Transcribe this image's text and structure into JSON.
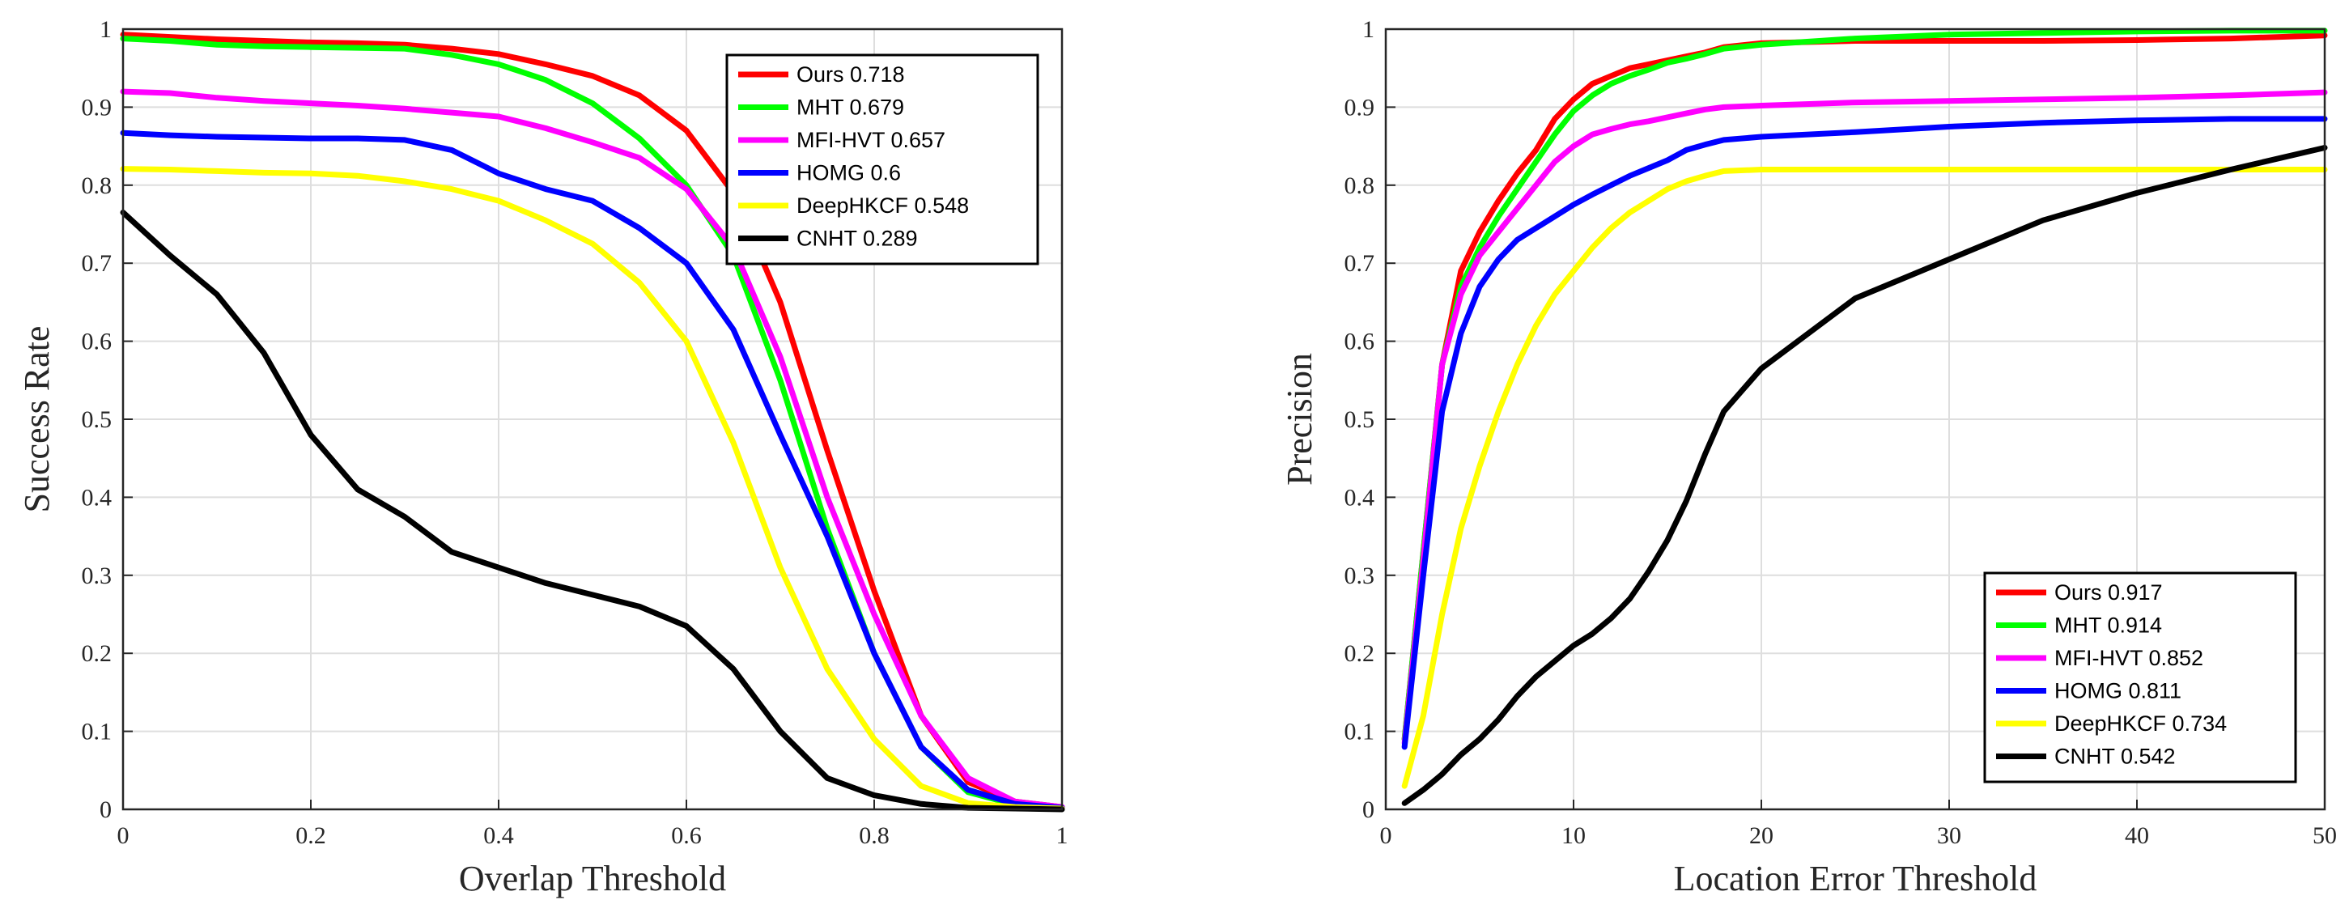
{
  "chart_data": [
    {
      "type": "line",
      "title": "",
      "xlabel": "Overlap Threshold",
      "ylabel": "Success Rate",
      "xlim": [
        0,
        1
      ],
      "ylim": [
        0,
        1
      ],
      "xticks": [
        "0",
        "0.2",
        "0.4",
        "0.6",
        "0.8",
        "1"
      ],
      "yticks": [
        "0",
        "0.1",
        "0.2",
        "0.3",
        "0.4",
        "0.5",
        "0.6",
        "0.7",
        "0.8",
        "0.9",
        "1"
      ],
      "grid": true,
      "legend_position": "top-right",
      "x": [
        0,
        0.05,
        0.1,
        0.15,
        0.2,
        0.25,
        0.3,
        0.35,
        0.4,
        0.45,
        0.5,
        0.55,
        0.6,
        0.65,
        0.7,
        0.75,
        0.8,
        0.85,
        0.9,
        0.95,
        1
      ],
      "series": [
        {
          "name": "Ours",
          "score": "0.718",
          "color": "#ff0000",
          "values": [
            0.993,
            0.99,
            0.987,
            0.985,
            0.983,
            0.982,
            0.98,
            0.975,
            0.968,
            0.955,
            0.94,
            0.915,
            0.87,
            0.79,
            0.65,
            0.46,
            0.28,
            0.12,
            0.035,
            0.01,
            0.003
          ]
        },
        {
          "name": "MHT",
          "score": "0.679",
          "color": "#00ff00",
          "values": [
            0.988,
            0.985,
            0.98,
            0.978,
            0.977,
            0.976,
            0.975,
            0.967,
            0.955,
            0.935,
            0.905,
            0.86,
            0.8,
            0.71,
            0.55,
            0.36,
            0.2,
            0.08,
            0.022,
            0.006,
            0.002
          ]
        },
        {
          "name": "MFI-HVT",
          "score": "0.657",
          "color": "#ff00ff",
          "values": [
            0.92,
            0.918,
            0.912,
            0.908,
            0.905,
            0.902,
            0.898,
            0.893,
            0.888,
            0.873,
            0.855,
            0.835,
            0.795,
            0.72,
            0.58,
            0.4,
            0.25,
            0.12,
            0.04,
            0.01,
            0.003
          ]
        },
        {
          "name": "HOMG",
          "score": "0.6",
          "color": "#0000ff",
          "values": [
            0.867,
            0.864,
            0.862,
            0.861,
            0.86,
            0.86,
            0.858,
            0.845,
            0.815,
            0.795,
            0.78,
            0.745,
            0.7,
            0.615,
            0.48,
            0.35,
            0.2,
            0.08,
            0.025,
            0.007,
            0.002
          ]
        },
        {
          "name": "DeepHKCF",
          "score": "0.548",
          "color": "#ffff00",
          "values": [
            0.821,
            0.82,
            0.818,
            0.816,
            0.815,
            0.812,
            0.805,
            0.795,
            0.78,
            0.755,
            0.725,
            0.675,
            0.6,
            0.47,
            0.31,
            0.18,
            0.09,
            0.03,
            0.008,
            0.003,
            0.001
          ]
        },
        {
          "name": "CNHT",
          "score": "0.289",
          "color": "#000000",
          "values": [
            0.765,
            0.71,
            0.66,
            0.585,
            0.48,
            0.41,
            0.375,
            0.33,
            0.31,
            0.29,
            0.275,
            0.26,
            0.235,
            0.18,
            0.1,
            0.04,
            0.018,
            0.007,
            0.002,
            0.001,
            0
          ]
        }
      ]
    },
    {
      "type": "line",
      "title": "",
      "xlabel": "Location Error Threshold",
      "ylabel": "Precision",
      "xlim": [
        0,
        50
      ],
      "ylim": [
        0,
        1
      ],
      "xticks": [
        "0",
        "10",
        "20",
        "30",
        "40",
        "50"
      ],
      "yticks": [
        "0",
        "0.1",
        "0.2",
        "0.3",
        "0.4",
        "0.5",
        "0.6",
        "0.7",
        "0.8",
        "0.9",
        "1"
      ],
      "grid": true,
      "legend_position": "bottom-right",
      "x": [
        1,
        2,
        3,
        4,
        5,
        6,
        7,
        8,
        9,
        10,
        11,
        12,
        13,
        14,
        15,
        16,
        17,
        18,
        20,
        25,
        30,
        35,
        40,
        45,
        50
      ],
      "series": [
        {
          "name": "Ours",
          "score": "0.917",
          "color": "#ff0000",
          "values": [
            0.09,
            0.33,
            0.57,
            0.69,
            0.74,
            0.78,
            0.815,
            0.845,
            0.885,
            0.91,
            0.93,
            0.94,
            0.95,
            0.955,
            0.96,
            0.965,
            0.97,
            0.977,
            0.982,
            0.985,
            0.985,
            0.985,
            0.986,
            0.988,
            0.992
          ]
        },
        {
          "name": "MHT",
          "score": "0.914",
          "color": "#00ff00",
          "values": [
            0.09,
            0.33,
            0.57,
            0.67,
            0.72,
            0.76,
            0.795,
            0.83,
            0.865,
            0.895,
            0.915,
            0.93,
            0.94,
            0.948,
            0.957,
            0.962,
            0.968,
            0.975,
            0.98,
            0.988,
            0.993,
            0.995,
            0.997,
            0.998,
            0.998
          ]
        },
        {
          "name": "MFI-HVT",
          "score": "0.852",
          "color": "#ff00ff",
          "values": [
            0.085,
            0.32,
            0.57,
            0.66,
            0.71,
            0.74,
            0.77,
            0.8,
            0.83,
            0.85,
            0.865,
            0.872,
            0.878,
            0.882,
            0.887,
            0.892,
            0.897,
            0.9,
            0.902,
            0.906,
            0.908,
            0.91,
            0.912,
            0.915,
            0.919
          ]
        },
        {
          "name": "HOMG",
          "score": "0.811",
          "color": "#0000ff",
          "values": [
            0.08,
            0.3,
            0.51,
            0.61,
            0.67,
            0.705,
            0.73,
            0.745,
            0.76,
            0.775,
            0.788,
            0.8,
            0.812,
            0.822,
            0.832,
            0.845,
            0.852,
            0.858,
            0.862,
            0.868,
            0.875,
            0.88,
            0.883,
            0.885,
            0.885
          ]
        },
        {
          "name": "DeepHKCF",
          "score": "0.734",
          "color": "#ffff00",
          "values": [
            0.03,
            0.12,
            0.25,
            0.36,
            0.44,
            0.51,
            0.57,
            0.62,
            0.66,
            0.69,
            0.72,
            0.745,
            0.765,
            0.78,
            0.795,
            0.805,
            0.812,
            0.818,
            0.82,
            0.82,
            0.82,
            0.82,
            0.82,
            0.82,
            0.82
          ]
        },
        {
          "name": "CNHT",
          "score": "0.542",
          "color": "#000000",
          "values": [
            0.008,
            0.025,
            0.045,
            0.07,
            0.09,
            0.115,
            0.145,
            0.17,
            0.19,
            0.21,
            0.225,
            0.245,
            0.27,
            0.305,
            0.345,
            0.395,
            0.455,
            0.51,
            0.565,
            0.655,
            0.705,
            0.755,
            0.79,
            0.82,
            0.848
          ]
        }
      ]
    }
  ]
}
